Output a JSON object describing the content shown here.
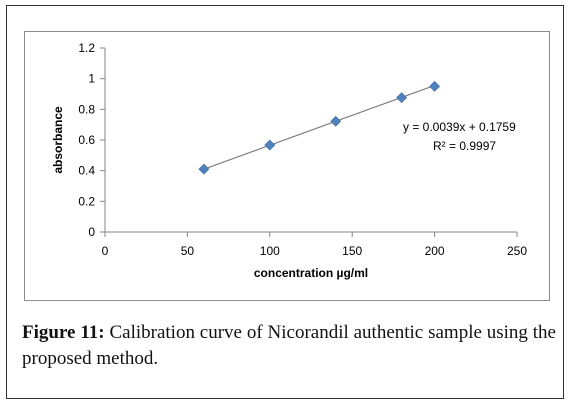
{
  "chart_data": {
    "type": "scatter",
    "title": "",
    "xlabel": "concentration µg/ml",
    "ylabel": "absorbance",
    "xlim": [
      0,
      250
    ],
    "ylim": [
      0,
      1.2
    ],
    "x_ticks": [
      "0",
      "50",
      "100",
      "150",
      "200",
      "250"
    ],
    "y_ticks": [
      "0",
      "0.2",
      "0.4",
      "0.6",
      "0.8",
      "1",
      "1.2"
    ],
    "series": [
      {
        "x": [
          60,
          100,
          140,
          180,
          200
        ],
        "y": [
          0.41,
          0.567,
          0.722,
          0.876,
          0.95
        ]
      }
    ],
    "trendline": {
      "slope": 0.0039,
      "intercept": 0.1759,
      "x_range": [
        60,
        200
      ]
    },
    "annotations": [
      "y = 0.0039x + 0.1759",
      "R² = 0.9997"
    ],
    "grid": false,
    "legend": "none",
    "colors": {
      "marker": "#4f81bd",
      "trendline": "#7f7f7f",
      "axis": "#868686"
    }
  },
  "caption": {
    "label": "Figure 11:",
    "text": " Calibration curve of Nicorandil authentic sample using the proposed method."
  }
}
